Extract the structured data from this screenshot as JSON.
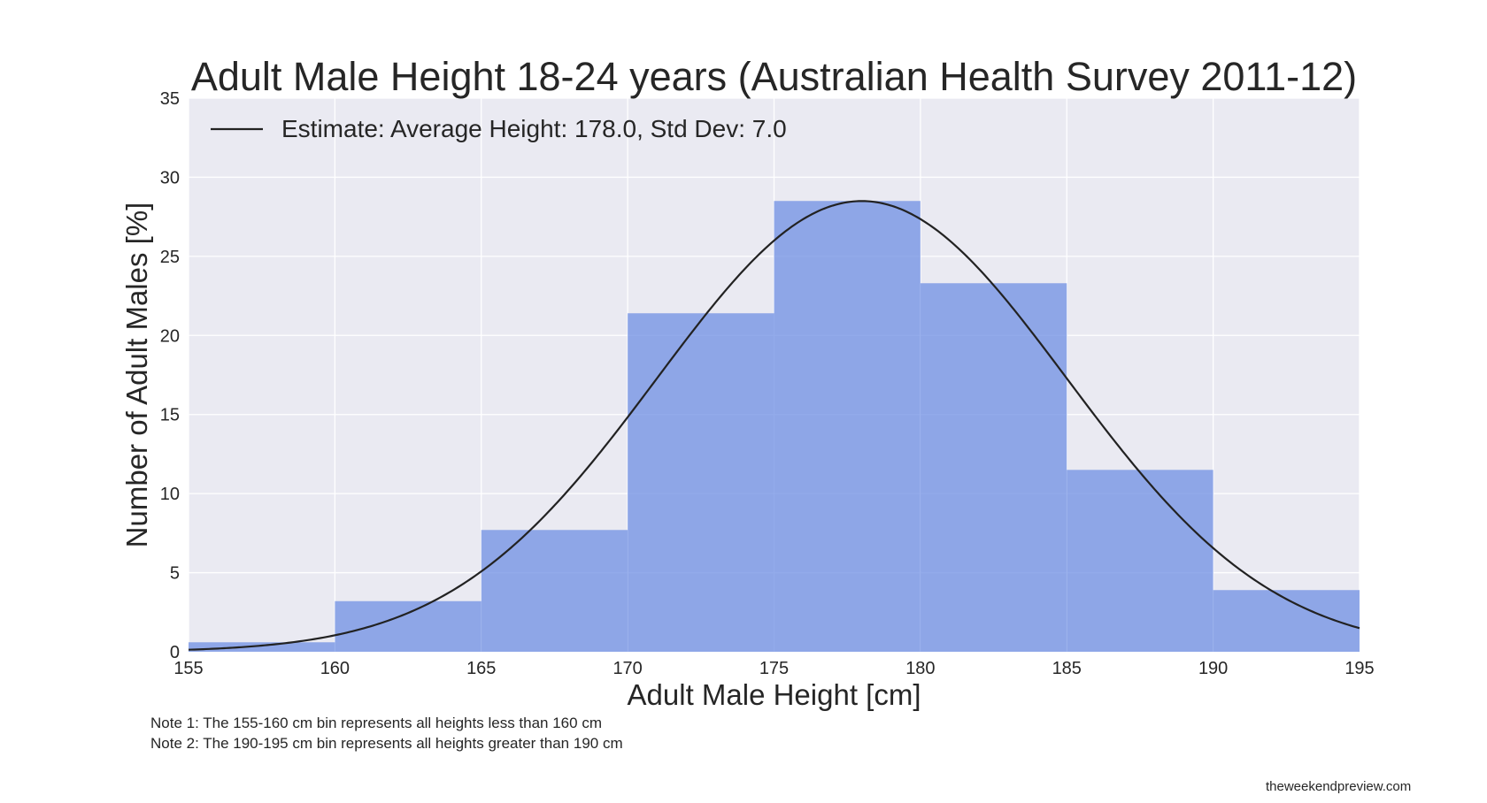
{
  "chart_data": {
    "type": "bar",
    "title": "Adult Male Height 18-24 years (Australian Health Survey 2011-12)",
    "xlabel": "Adult Male Height [cm]",
    "ylabel": "Number of Adult Males [%]",
    "xlim": [
      155,
      195
    ],
    "ylim": [
      0,
      35
    ],
    "xticks": [
      155,
      160,
      165,
      170,
      175,
      180,
      185,
      190,
      195
    ],
    "yticks": [
      0,
      5,
      10,
      15,
      20,
      25,
      30,
      35
    ],
    "grid": true,
    "legend_position": "upper-left",
    "bins": [
      {
        "start": 155,
        "end": 160,
        "value": 0.6
      },
      {
        "start": 160,
        "end": 165,
        "value": 3.2
      },
      {
        "start": 165,
        "end": 170,
        "value": 7.7
      },
      {
        "start": 170,
        "end": 175,
        "value": 21.4
      },
      {
        "start": 175,
        "end": 180,
        "value": 28.5
      },
      {
        "start": 180,
        "end": 185,
        "value": 23.3
      },
      {
        "start": 185,
        "end": 190,
        "value": 11.5
      },
      {
        "start": 190,
        "end": 195,
        "value": 3.9
      }
    ],
    "fit_curve": {
      "name": "Estimate: Average Height: 178.0, Std Dev: 7.0",
      "mean": 178.0,
      "std": 7.0,
      "color": "#222222"
    },
    "bar_color": "#6f8fe3",
    "bar_opacity": 0.75,
    "plot_background": "#eaeaf2",
    "grid_color": "#ffffff"
  },
  "notes": [
    "Note 1: The 155-160 cm bin represents all heights less than 160 cm",
    "Note 2: The 190-195 cm bin represents all heights greater than 190 cm"
  ],
  "watermark": "theweekendpreview.com"
}
